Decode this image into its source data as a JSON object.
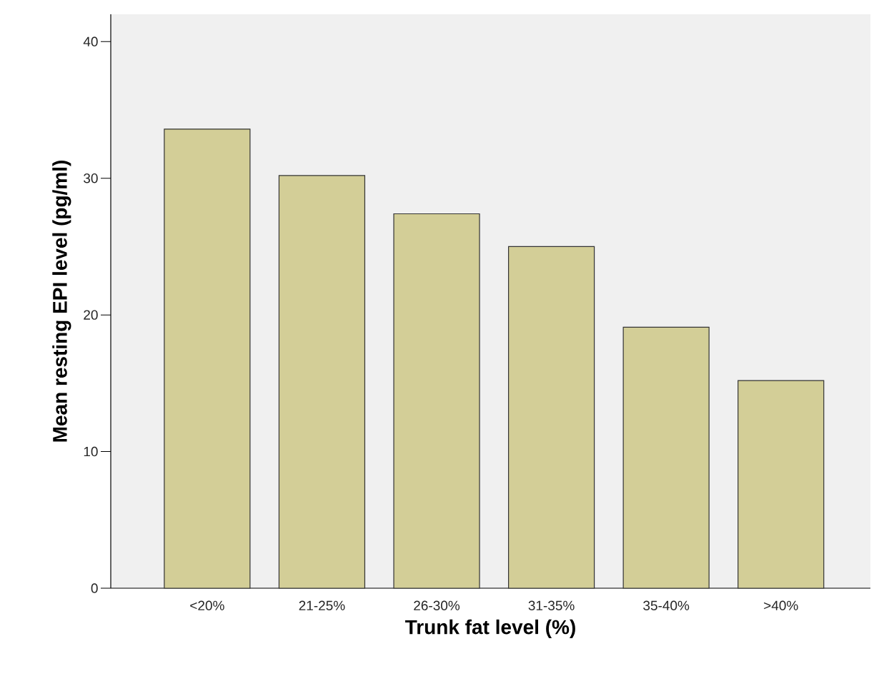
{
  "chart_data": {
    "type": "bar",
    "xlabel": "Trunk fat level (%)",
    "ylabel": "Mean resting EPI level (pg/ml)",
    "categories": [
      "<20%",
      "21-25%",
      "26-30%",
      "31-35%",
      "35-40%",
      ">40%"
    ],
    "values": [
      33.6,
      30.2,
      27.4,
      25.0,
      19.1,
      15.2
    ],
    "color": "#d3ce97",
    "ylim": [
      0,
      42
    ],
    "yticks": [
      0,
      10,
      20,
      30,
      40
    ],
    "grid": false
  }
}
